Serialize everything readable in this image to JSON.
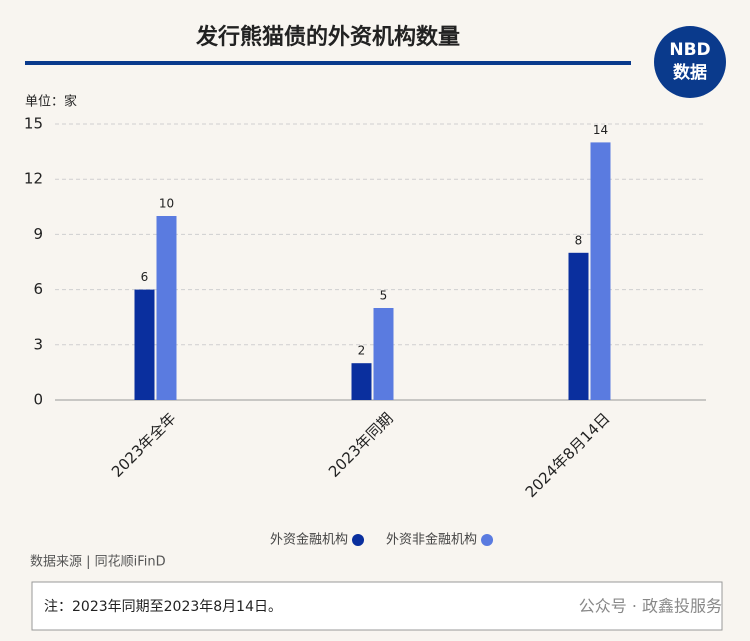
{
  "chart_data": {
    "type": "bar",
    "title": "发行熊猫债的外资机构数量",
    "logo": {
      "top": "NBD",
      "bottom": "数据"
    },
    "unit_label": "单位：家",
    "categories": [
      "2023年全年",
      "2023年同期",
      "2024年8月14日"
    ],
    "series": [
      {
        "name": "外资金融机构",
        "color": "#0a2f9e",
        "values": [
          6,
          2,
          8
        ]
      },
      {
        "name": "外资非金融机构",
        "color": "#5a7be0",
        "values": [
          10,
          5,
          14
        ]
      }
    ],
    "ylim": [
      0,
      15
    ],
    "yticks": [
      0,
      3,
      6,
      9,
      12,
      15
    ],
    "grid": true,
    "source": "数据来源 | 同花顺iFinD",
    "note": "注：2023年同期至2023年8月14日。",
    "watermark": "公众号 · 政鑫投服务"
  }
}
